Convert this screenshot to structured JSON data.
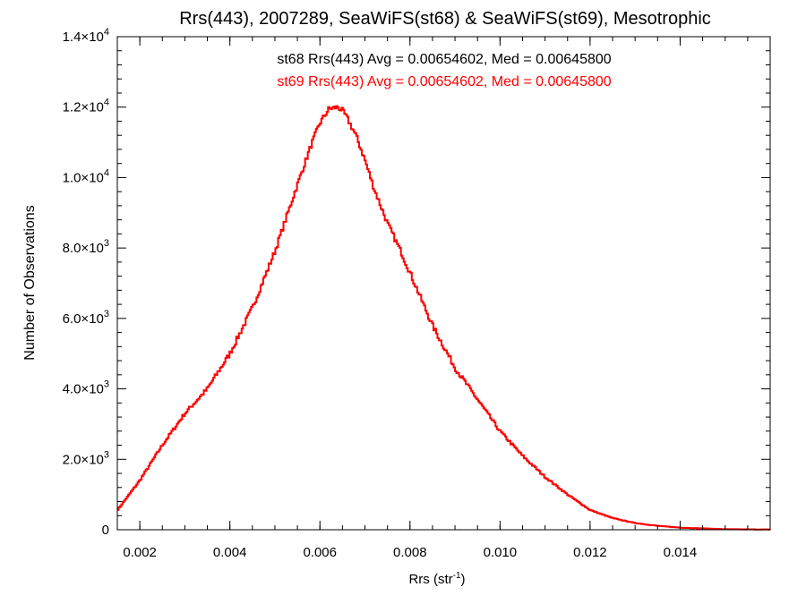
{
  "chart_data": {
    "type": "line",
    "title": "Rrs(443), 2007289, SeaWiFS(st68) & SeaWiFS(st69), Mesotrophic",
    "xlabel_base": "Rrs (str",
    "xlabel_sup": "-1",
    "xlabel_close": ")",
    "ylabel": "Number of Observations",
    "xlim": [
      0.0015,
      0.016
    ],
    "ylim": [
      0,
      14000
    ],
    "x_ticks": [
      0.002,
      0.004,
      0.006,
      0.008,
      0.01,
      0.012,
      0.014
    ],
    "x_tick_labels": [
      "0.002",
      "0.004",
      "0.006",
      "0.008",
      "0.010",
      "0.012",
      "0.014"
    ],
    "y_ticks": [
      0,
      2000,
      4000,
      6000,
      8000,
      10000,
      12000,
      14000
    ],
    "y_tick_labels": [
      {
        "mant": "0",
        "exp": ""
      },
      {
        "mant": "2.0×10",
        "exp": "3"
      },
      {
        "mant": "4.0×10",
        "exp": "3"
      },
      {
        "mant": "6.0×10",
        "exp": "3"
      },
      {
        "mant": "8.0×10",
        "exp": "3"
      },
      {
        "mant": "1.0×10",
        "exp": "4"
      },
      {
        "mant": "1.2×10",
        "exp": "4"
      },
      {
        "mant": "1.4×10",
        "exp": "4"
      }
    ],
    "annotations": [
      {
        "text": "st68 Rrs(443) Avg = 0.00654602, Med = 0.00645800",
        "color": "#000000"
      },
      {
        "text": "st69 Rrs(443) Avg = 0.00654602, Med = 0.00645800",
        "color": "#ff0000"
      }
    ],
    "series": [
      {
        "color": "#ff0000",
        "style": "step",
        "x": [
          0.0015,
          0.002,
          0.0025,
          0.003,
          0.0035,
          0.004,
          0.0045,
          0.005,
          0.0055,
          0.0058,
          0.006,
          0.0062,
          0.0064,
          0.0065,
          0.0066,
          0.0068,
          0.007,
          0.0072,
          0.0075,
          0.0078,
          0.008,
          0.0085,
          0.009,
          0.0095,
          0.01,
          0.0105,
          0.011,
          0.0115,
          0.012,
          0.0125,
          0.013,
          0.0135,
          0.014,
          0.015,
          0.016
        ],
        "y": [
          550,
          1400,
          2400,
          3300,
          4000,
          5000,
          6300,
          7900,
          9800,
          10900,
          11550,
          11950,
          12000,
          11900,
          11700,
          11200,
          10500,
          9700,
          8700,
          7900,
          7300,
          5800,
          4600,
          3700,
          2800,
          2100,
          1500,
          1000,
          560,
          330,
          190,
          110,
          60,
          15,
          5
        ]
      }
    ]
  }
}
